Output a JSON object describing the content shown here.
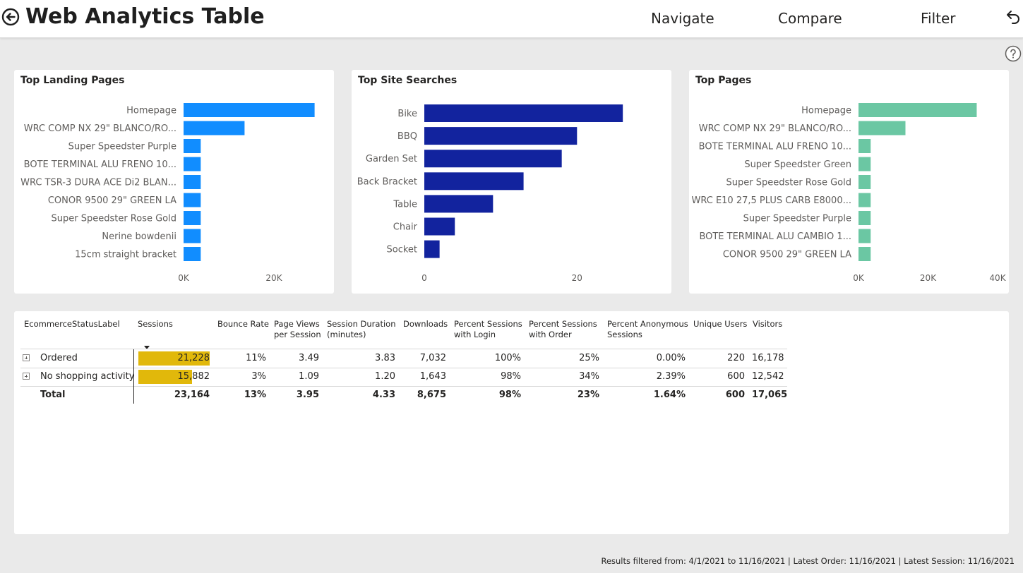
{
  "header": {
    "title": "Web Analytics Table",
    "nav_navigate": "Navigate",
    "nav_compare": "Compare",
    "nav_filter": "Filter",
    "icons": {
      "back": "back-arrow-circle-icon",
      "undo": "undo-icon",
      "help": "help-circle-icon"
    }
  },
  "colors": {
    "landing": "#118dff",
    "searches": "#12239e",
    "pages": "#6bc7a3",
    "databar": "#e1b80b"
  },
  "chart_data": [
    {
      "type": "bar",
      "orientation": "horizontal",
      "title": "Top Landing Pages",
      "categories": [
        "Homepage",
        "WRC COMP NX 29\" BLANCO/RO...",
        "Super Speedster Purple",
        "BOTE TERMINAL ALU FRENO 10...",
        "WRC TSR-3 DURA ACE Di2 BLAN...",
        "CONOR 9500 29\" GREEN LA",
        "Super Speedster Rose Gold",
        "Nerine bowdenii",
        "15cm straight bracket"
      ],
      "values": [
        29000,
        13500,
        3800,
        3800,
        3800,
        3800,
        3800,
        3800,
        3800
      ],
      "xlim": [
        0,
        30000
      ],
      "xticks": [
        "0K",
        "20K"
      ],
      "xtick_values": [
        0,
        20000
      ],
      "grid": false
    },
    {
      "type": "bar",
      "orientation": "horizontal",
      "title": "Top Site Searches",
      "categories": [
        "Bike",
        "BBQ",
        "Garden Set",
        "Back Bracket",
        "Table",
        "Chair",
        "Socket"
      ],
      "values": [
        26,
        20,
        18,
        13,
        9,
        4,
        2
      ],
      "xlim": [
        0,
        27
      ],
      "xticks": [
        "0",
        "20"
      ],
      "xtick_values": [
        0,
        20
      ],
      "grid": false
    },
    {
      "type": "bar",
      "orientation": "horizontal",
      "title": "Top Pages",
      "categories": [
        "Homepage",
        "WRC COMP NX 29\" BLANCO/RO...",
        "BOTE TERMINAL ALU FRENO 10...",
        "Super Speedster Green",
        "Super Speedster Rose Gold",
        "WRC E10 27,5 PLUS CARB E8000...",
        "Super Speedster Purple",
        "BOTE TERMINAL ALU CAMBIO 1...",
        "CONOR 9500 29\" GREEN LA"
      ],
      "values": [
        34000,
        13500,
        3500,
        3500,
        3500,
        3500,
        3500,
        3500,
        3500
      ],
      "xlim": [
        0,
        40000
      ],
      "xticks": [
        "0K",
        "20K",
        "40K"
      ],
      "xtick_values": [
        0,
        20000,
        40000
      ],
      "grid": false
    },
    {
      "type": "table",
      "columns": [
        "EcommerceStatusLabel",
        "Sessions",
        "Bounce Rate",
        "Page Views per Session",
        "Session Duration (minutes)",
        "Downloads",
        "Percent Sessions with Login",
        "Percent Sessions with Order",
        "Percent Anonymous Sessions",
        "Unique Users",
        "Visitors"
      ],
      "sorted_by": "Sessions",
      "rows": [
        [
          "Ordered",
          "21,228",
          "11%",
          "3.49",
          "3.83",
          "7,032",
          "100%",
          "25%",
          "0.00%",
          "220",
          "16,178"
        ],
        [
          "No shopping activity",
          "15,882",
          "3%",
          "1.09",
          "1.20",
          "1,643",
          "98%",
          "34%",
          "2.39%",
          "600",
          "12,542"
        ]
      ],
      "session_values": [
        21228,
        15882
      ],
      "total": [
        "Total",
        "23,164",
        "13%",
        "3.95",
        "4.33",
        "8,675",
        "98%",
        "23%",
        "1.64%",
        "600",
        "17,065"
      ]
    }
  ],
  "table_headers": {
    "c0": "EcommerceStatusLabel",
    "c1": "Sessions",
    "c2": "Bounce Rate",
    "c3a": "Page Views",
    "c3b": "per Session",
    "c4a": "Session Duration",
    "c4b": "(minutes)",
    "c5": "Downloads",
    "c6a": "Percent Sessions",
    "c6b": "with Login",
    "c7a": "Percent Sessions",
    "c7b": "with Order",
    "c8a": "Percent Anonymous",
    "c8b": "Sessions",
    "c9": "Unique Users",
    "c10": "Visitors"
  },
  "footer": "Results filtered from: 4/1/2021 to 11/16/2021  |  Latest Order: 11/16/2021  |  Latest Session: 11/16/2021"
}
